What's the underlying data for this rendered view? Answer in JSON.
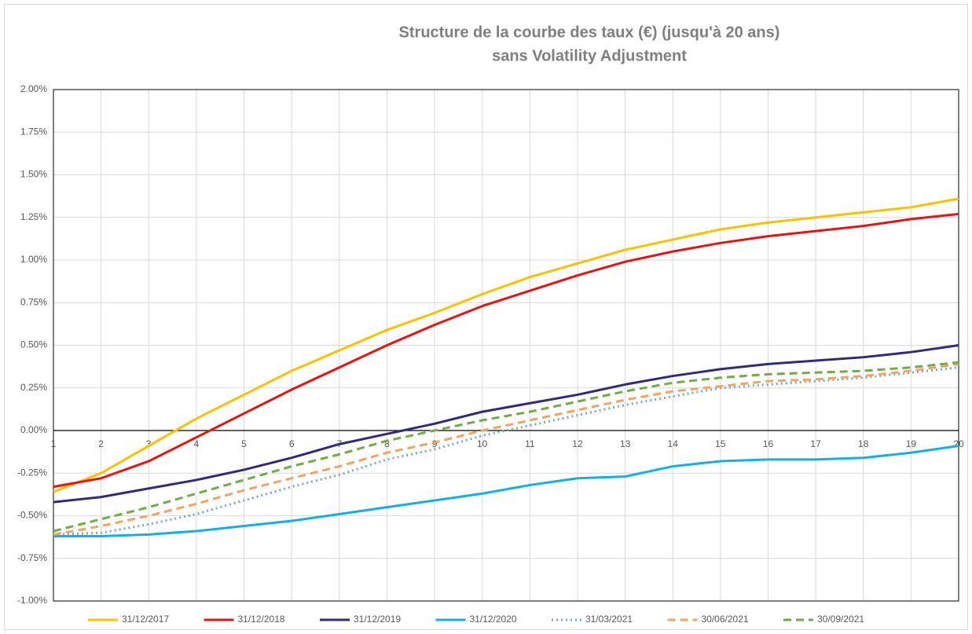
{
  "chart_data": {
    "type": "line",
    "title": [
      "Structure de la courbe des taux (€) (jusqu'à 20 ans)",
      "sans Volatility Adjustment"
    ],
    "categories": [
      1,
      2,
      3,
      4,
      5,
      6,
      7,
      8,
      9,
      10,
      11,
      12,
      13,
      14,
      15,
      16,
      17,
      18,
      19,
      20
    ],
    "ylim": [
      -1,
      2
    ],
    "yticks": [
      {
        "value": -1,
        "label": "-1.00%"
      },
      {
        "value": -0.75,
        "label": "-0.75%"
      },
      {
        "value": -0.5,
        "label": "-0.50%"
      },
      {
        "value": -0.25,
        "label": "-0.25%"
      },
      {
        "value": 0,
        "label": "0.00%"
      },
      {
        "value": 0.25,
        "label": "0.25%"
      },
      {
        "value": 0.5,
        "label": "0.50%"
      },
      {
        "value": 0.75,
        "label": "0.75%"
      },
      {
        "value": 1,
        "label": "1.00%"
      },
      {
        "value": 1.25,
        "label": "1.25%"
      },
      {
        "value": 1.5,
        "label": "1.50%"
      },
      {
        "value": 1.75,
        "label": "1.75%"
      },
      {
        "value": 2,
        "label": "2.00%"
      }
    ],
    "grid": true,
    "legend": "bottom",
    "series": [
      {
        "name": "31/12/2017",
        "color": "#ffc000",
        "dash": "solid",
        "values": [
          -0.36,
          -0.25,
          -0.09,
          0.07,
          0.21,
          0.35,
          0.47,
          0.59,
          0.69,
          0.8,
          0.9,
          0.98,
          1.06,
          1.12,
          1.18,
          1.22,
          1.25,
          1.28,
          1.31,
          1.36
        ]
      },
      {
        "name": "31/12/2018",
        "color": "#ee1111",
        "dash": "solid",
        "values": [
          -0.33,
          -0.28,
          -0.18,
          -0.04,
          0.1,
          0.24,
          0.37,
          0.5,
          0.62,
          0.73,
          0.82,
          0.91,
          0.99,
          1.05,
          1.1,
          1.14,
          1.17,
          1.2,
          1.24,
          1.27
        ]
      },
      {
        "name": "31/12/2019",
        "color": "#302a80",
        "dash": "solid",
        "values": [
          -0.42,
          -0.39,
          -0.34,
          -0.29,
          -0.23,
          -0.16,
          -0.08,
          -0.02,
          0.04,
          0.11,
          0.16,
          0.21,
          0.27,
          0.32,
          0.36,
          0.39,
          0.41,
          0.43,
          0.46,
          0.5
        ]
      },
      {
        "name": "31/12/2020",
        "color": "#11b0ea",
        "dash": "solid",
        "values": [
          -0.62,
          -0.62,
          -0.61,
          -0.59,
          -0.56,
          -0.53,
          -0.49,
          -0.45,
          -0.41,
          -0.37,
          -0.32,
          -0.28,
          -0.27,
          -0.21,
          -0.18,
          -0.17,
          -0.17,
          -0.16,
          -0.13,
          -0.09
        ]
      },
      {
        "name": "31/03/2021",
        "color": "#6fa8dc",
        "dash": "dotted",
        "values": [
          -0.61,
          -0.6,
          -0.55,
          -0.49,
          -0.41,
          -0.33,
          -0.26,
          -0.17,
          -0.11,
          -0.03,
          0.03,
          0.09,
          0.15,
          0.2,
          0.25,
          0.27,
          0.29,
          0.31,
          0.34,
          0.37
        ]
      },
      {
        "name": "30/06/2021",
        "color": "#f4a460",
        "dash": "dashed",
        "values": [
          -0.61,
          -0.56,
          -0.5,
          -0.43,
          -0.35,
          -0.28,
          -0.21,
          -0.13,
          -0.07,
          0.0,
          0.06,
          0.12,
          0.18,
          0.23,
          0.26,
          0.29,
          0.3,
          0.32,
          0.35,
          0.39
        ]
      },
      {
        "name": "30/09/2021",
        "color": "#70ad47",
        "dash": "dashed",
        "values": [
          -0.59,
          -0.52,
          -0.45,
          -0.37,
          -0.29,
          -0.21,
          -0.14,
          -0.06,
          0.0,
          0.06,
          0.11,
          0.17,
          0.23,
          0.28,
          0.31,
          0.33,
          0.34,
          0.35,
          0.37,
          0.4
        ]
      }
    ]
  }
}
